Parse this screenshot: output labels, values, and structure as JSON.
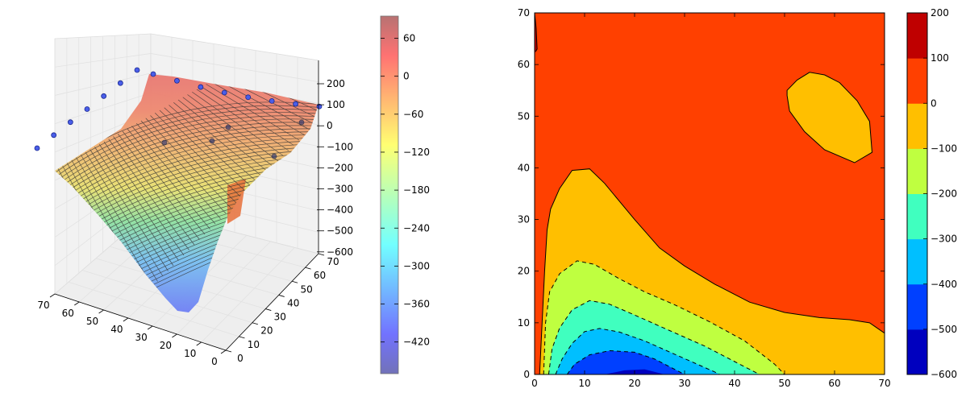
{
  "chart_data": [
    {
      "type": "surface",
      "x_ticks": [
        "70",
        "60",
        "50",
        "40",
        "30",
        "20",
        "10",
        "0"
      ],
      "y_ticks": [
        "0",
        "10",
        "20",
        "30",
        "40",
        "50",
        "60",
        "70"
      ],
      "z_ticks": [
        "200",
        "100",
        "0",
        "−100",
        "−200",
        "−300",
        "−400",
        "−500",
        "−600"
      ],
      "xlim": [
        0,
        70
      ],
      "ylim": [
        0,
        70
      ],
      "zlim": [
        -600,
        200
      ],
      "surface_samples": [
        {
          "x": 0,
          "y": 0,
          "z": -20
        },
        {
          "x": 70,
          "y": 0,
          "z": -100
        },
        {
          "x": 70,
          "y": 70,
          "z": 80
        },
        {
          "x": 0,
          "y": 70,
          "z": 120
        },
        {
          "x": 20,
          "y": 5,
          "z": -560
        },
        {
          "x": 35,
          "y": 35,
          "z": 20
        }
      ],
      "scatter_points_count": 15,
      "colormap": "jet",
      "alpha": 0.5,
      "colorbar": {
        "ticks": [
          "60",
          "0",
          "−60",
          "−120",
          "−180",
          "−240",
          "−300",
          "−360",
          "−420"
        ],
        "range": [
          -470,
          95
        ]
      }
    },
    {
      "type": "contourf",
      "x_ticks": [
        "0",
        "10",
        "20",
        "30",
        "40",
        "50",
        "60",
        "70"
      ],
      "y_ticks": [
        "0",
        "10",
        "20",
        "30",
        "40",
        "50",
        "60",
        "70"
      ],
      "xlim": [
        0,
        70
      ],
      "ylim": [
        0,
        70
      ],
      "levels": [
        -600,
        -500,
        -400,
        -300,
        -200,
        -100,
        0,
        100,
        200
      ],
      "level_colors": [
        "#0000bf",
        "#0040ff",
        "#00bfff",
        "#40ffbf",
        "#bfff40",
        "#ffbf00",
        "#ff4000",
        "#bf0000"
      ],
      "colorbar": {
        "ticks": [
          "200",
          "100",
          "0",
          "−100",
          "−200",
          "−300",
          "−400",
          "−500",
          "−600"
        ]
      },
      "regions": {
        "level_0_100": [
          [
            0,
            70
          ],
          [
            0.5,
            67
          ],
          [
            1,
            63
          ],
          [
            1.5,
            58
          ],
          [
            1.2,
            50
          ],
          [
            0.8,
            45
          ],
          [
            0,
            40
          ],
          [
            70,
            40
          ],
          [
            70,
            70
          ]
        ],
        "level_neg100_0": [
          [
            0,
            0
          ],
          [
            1,
            0
          ],
          [
            1.5,
            10
          ],
          [
            2,
            20
          ],
          [
            2.5,
            28
          ],
          [
            3.2,
            32
          ],
          [
            5,
            36
          ],
          [
            7.5,
            39.5
          ],
          [
            11,
            39.8
          ],
          [
            14,
            37
          ],
          [
            20,
            30
          ],
          [
            25,
            24.5
          ],
          [
            30,
            21
          ],
          [
            36,
            17.5
          ],
          [
            43,
            14
          ],
          [
            50,
            12
          ],
          [
            57,
            11
          ],
          [
            63,
            10.6
          ],
          [
            67,
            10
          ],
          [
            70,
            8
          ],
          [
            70,
            0
          ]
        ],
        "level_neg200_neg100": [
          [
            1.8,
            0
          ],
          [
            2.2,
            10
          ],
          [
            3,
            16
          ],
          [
            5,
            19.5
          ],
          [
            8.5,
            22
          ],
          [
            12,
            21.3
          ],
          [
            17,
            18.5
          ],
          [
            22,
            16
          ],
          [
            28,
            13.5
          ],
          [
            35,
            10.2
          ],
          [
            42,
            6.5
          ],
          [
            48,
            2
          ],
          [
            50,
            0
          ]
        ],
        "level_neg300_neg200": [
          [
            2.8,
            0
          ],
          [
            3.5,
            5
          ],
          [
            5,
            9
          ],
          [
            7.5,
            12.5
          ],
          [
            11,
            14.3
          ],
          [
            15,
            13.6
          ],
          [
            20,
            11.5
          ],
          [
            27,
            8.5
          ],
          [
            34,
            5.5
          ],
          [
            40,
            2.5
          ],
          [
            45,
            0
          ]
        ],
        "level_neg400_neg300": [
          [
            4.2,
            0
          ],
          [
            5.5,
            3
          ],
          [
            7.5,
            6
          ],
          [
            10,
            8.3
          ],
          [
            13,
            8.9
          ],
          [
            17,
            8.2
          ],
          [
            22,
            6.5
          ],
          [
            29,
            3.5
          ],
          [
            36,
            0.5
          ],
          [
            37,
            0
          ]
        ],
        "level_neg500_neg400": [
          [
            6.5,
            0
          ],
          [
            8,
            2
          ],
          [
            11,
            3.8
          ],
          [
            15,
            4.6
          ],
          [
            20,
            4.3
          ],
          [
            24,
            3
          ],
          [
            28,
            1
          ],
          [
            30,
            0
          ]
        ],
        "level_neg600_neg500": [
          [
            14,
            0
          ],
          [
            18,
            0.8
          ],
          [
            22,
            1
          ],
          [
            26,
            0
          ]
        ],
        "island_neg100_0": [
          [
            50.5,
            55
          ],
          [
            52.5,
            57
          ],
          [
            55,
            58.5
          ],
          [
            58,
            58
          ],
          [
            61,
            56.5
          ],
          [
            64.5,
            53
          ],
          [
            67,
            49
          ],
          [
            67.5,
            43
          ],
          [
            64,
            41
          ],
          [
            58,
            43.5
          ],
          [
            54,
            47
          ],
          [
            51,
            51
          ],
          [
            50.5,
            54
          ]
        ],
        "corner_100_200": [
          [
            0,
            70
          ],
          [
            0.3,
            67
          ],
          [
            0.5,
            63
          ],
          [
            0.2,
            62.5
          ],
          [
            0,
            62
          ]
        ]
      }
    }
  ]
}
